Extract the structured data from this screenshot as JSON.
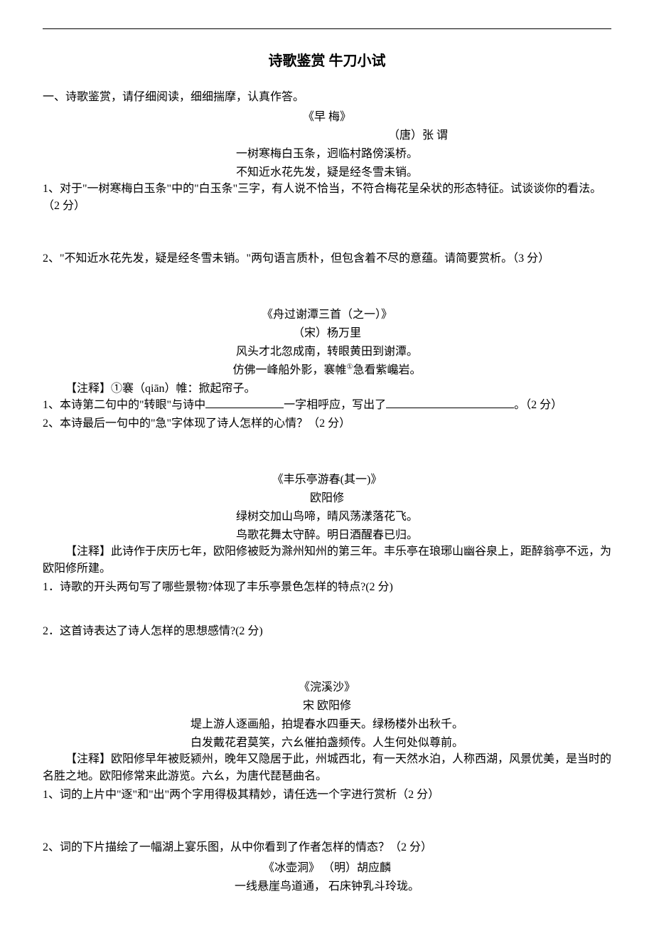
{
  "page": {
    "title": "诗歌鉴赏  牛刀小试",
    "section_head": "一、诗歌鉴赏，请仔细阅读，细细揣摩，认真作答。"
  },
  "poem1": {
    "title": "《早  梅》",
    "author": "（唐）张  谓",
    "line1": "一树寒梅白玉条，迥临村路傍溪桥。",
    "line2": "不知近水花先发，疑是经冬雪未销。",
    "q1": "1、对于\"一树寒梅白玉条\"中的\"白玉条\"三字，有人说不恰当，不符合梅花呈朵状的形态特征。试谈谈你的看法。（2 分）",
    "q2": "2、\"不知近水花先发，疑是经冬雪未销。\"两句语言质朴，但包含着不尽的意蕴。请简要赏析。（3 分）"
  },
  "poem2": {
    "title": "《舟过谢潭三首（之一）》",
    "author": "（宋）杨万里",
    "line1": "风头才北忽成南，转眼黄田到谢潭。",
    "line2_a": "仿佛一峰船外影，褰帷",
    "line2_b": "急看紫巉岩。",
    "sup": "①",
    "note": "【注释】①褰（qiān）帷：掀起帘子。",
    "q1_a": "1、本诗第二句中的\"转眼\"与诗中",
    "q1_b": "一字相呼应，写出了",
    "q1_c": "。（2 分）",
    "q2": "2、本诗最后一句中的\"急\"字体现了诗人怎样的心情？（2 分）"
  },
  "poem3": {
    "title": "《丰乐亭游春(其一)》",
    "author": "欧阳修",
    "line1": "绿树交加山鸟啼，晴风荡漾落花飞。",
    "line2": "鸟歌花舞太守醉。明日酒醒春已归。",
    "note": "【注释】此诗作于庆历七年，欧阳修被贬为滁州知州的第三年。丰乐亭在琅琊山幽谷泉上，距醉翁亭不远，为欧阳修所建。",
    "q1": "1．诗歌的开头两句写了哪些景物?体现了丰乐亭景色怎样的特点?(2 分)",
    "q2": "2．这首诗表达了诗人怎样的思想感情?(2 分)"
  },
  "poem4": {
    "title": "《浣溪沙》",
    "author": "宋 欧阳修",
    "line1": "堤上游人逐画船，拍堤春水四垂天。绿杨楼外出秋千。",
    "line2": "白发戴花君莫笑，六幺催拍盏频传。人生何处似尊前。",
    "note": "【注释】欧阳修早年被贬颍州，晚年又隐居于此，州城西北，有一天然水泊，人称西湖，风景优美，是当时的名胜之地。欧阳修常来此游览。六幺，为唐代琵琶曲名。",
    "q1": "1、词的上片中\"逐\"和\"出\"两个字用得极其精妙，请任选一个字进行赏析（2 分）",
    "q2": "2、词的下片描绘了一幅湖上宴乐图，从中你看到了作者怎样的情态？（2 分）"
  },
  "poem5": {
    "title": "《冰壶洞》  （明）胡应麟",
    "line1": "一线悬崖鸟道通，    石床钟乳斗玲珑。"
  }
}
